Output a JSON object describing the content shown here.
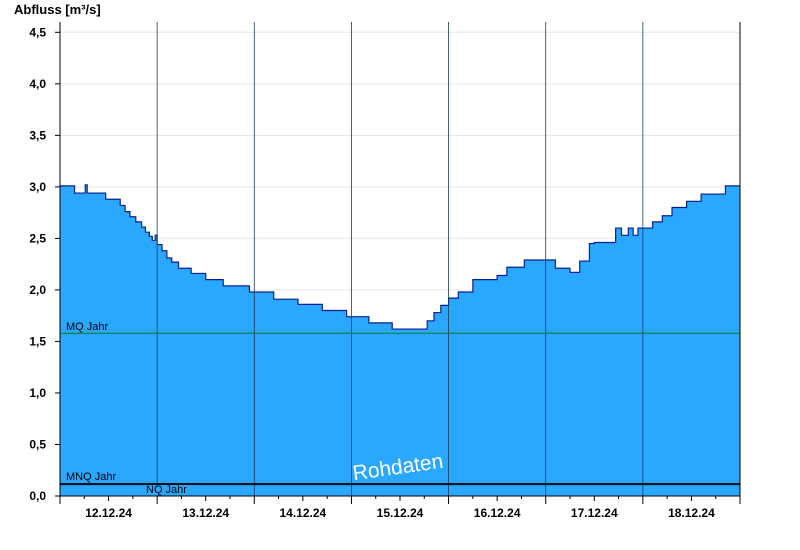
{
  "chart_data": {
    "type": "area",
    "ylabel": "Abfluss [m³/s]",
    "ylim": [
      0,
      4.6
    ],
    "yticks": [
      "0,0",
      "0,5",
      "1,0",
      "1,5",
      "2,0",
      "2,5",
      "3,0",
      "3,5",
      "4,0",
      "4,5"
    ],
    "ytick_values": [
      0,
      0.5,
      1.0,
      1.5,
      2.0,
      2.5,
      3.0,
      3.5,
      4.0,
      4.5
    ],
    "xlim": [
      0,
      7
    ],
    "xtick_labels": [
      "12.12.24",
      "13.12.24",
      "14.12.24",
      "15.12.24",
      "16.12.24",
      "17.12.24",
      "18.12.24"
    ],
    "xtick_label_positions": [
      0.5,
      1.5,
      2.5,
      3.5,
      4.5,
      5.5,
      6.5
    ],
    "day_boundaries": [
      1,
      2,
      3,
      4,
      5,
      6
    ],
    "grid": true,
    "fill_color": "#2aa8ff",
    "line_color": "#0a1f8f",
    "series": [
      {
        "x": [
          0,
          0.13,
          0.15,
          0.24,
          0.26,
          0.28,
          0.3,
          0.46,
          0.47,
          0.58,
          0.62,
          0.67,
          0.72,
          0.78,
          0.84,
          0.88,
          0.92,
          0.95,
          0.98,
          1.0,
          1.05,
          1.1,
          1.15,
          1.22,
          1.35,
          1.5,
          1.68,
          1.95,
          2.2,
          2.45,
          2.7,
          2.95,
          3.18,
          3.25,
          3.42,
          3.72,
          3.78,
          3.85,
          3.92,
          4.0,
          4.1,
          4.25,
          4.5,
          4.6,
          4.78,
          5.02,
          5.1,
          5.18,
          5.25,
          5.35,
          5.45,
          5.5,
          5.72,
          5.78,
          5.82,
          5.85,
          5.9,
          5.95,
          6.0,
          6.1,
          6.2,
          6.3,
          6.45,
          6.6,
          6.82,
          6.85,
          7.0
        ],
        "y": [
          3.01,
          3.01,
          2.94,
          2.94,
          3.02,
          2.94,
          2.94,
          2.94,
          2.88,
          2.88,
          2.82,
          2.76,
          2.71,
          2.66,
          2.61,
          2.56,
          2.52,
          2.48,
          2.53,
          2.44,
          2.38,
          2.31,
          2.27,
          2.21,
          2.16,
          2.1,
          2.04,
          1.98,
          1.91,
          1.86,
          1.8,
          1.74,
          1.68,
          1.68,
          1.62,
          1.62,
          1.7,
          1.78,
          1.85,
          1.92,
          1.98,
          2.1,
          2.14,
          2.22,
          2.29,
          2.29,
          2.21,
          2.21,
          2.17,
          2.28,
          2.45,
          2.46,
          2.6,
          2.53,
          2.53,
          2.6,
          2.53,
          2.6,
          2.6,
          2.66,
          2.72,
          2.8,
          2.86,
          2.93,
          2.93,
          3.01,
          3.01
        ]
      }
    ],
    "reference_lines": [
      {
        "label": "MQ Jahr",
        "value": 1.58,
        "color": "#0a7a2a"
      },
      {
        "label": "MNQ Jahr",
        "value": 0.115,
        "color": "#000000"
      },
      {
        "label": "NQ Jahr",
        "value": 0.115,
        "color": "#000000"
      }
    ],
    "watermark": "Rohdaten"
  }
}
